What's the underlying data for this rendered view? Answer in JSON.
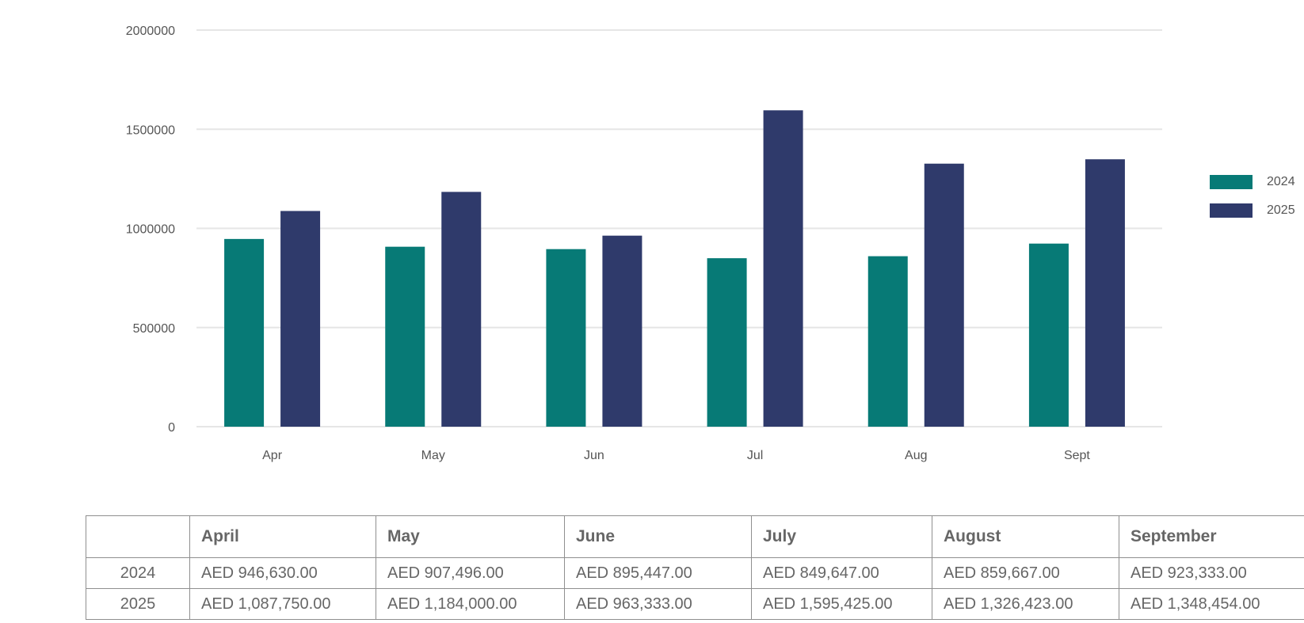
{
  "chart_data": {
    "type": "bar",
    "categories": [
      "Apr",
      "May",
      "Jun",
      "Jul",
      "Aug",
      "Sept"
    ],
    "series": [
      {
        "name": "2024",
        "color": "#077a76",
        "values": [
          946630,
          907496,
          895447,
          849647,
          859667,
          923333
        ]
      },
      {
        "name": "2025",
        "color": "#2f3a6b",
        "values": [
          1087750,
          1184000,
          963333,
          1595425,
          1326423,
          1348454
        ]
      }
    ],
    "yticks": [
      "0",
      "500000",
      "1000000",
      "1500000",
      "2000000"
    ],
    "ylim": [
      0,
      2000000
    ],
    "grid": true,
    "legend_position": "right"
  },
  "table": {
    "headers": [
      "",
      "April",
      "May",
      "June",
      "July",
      "August",
      "September"
    ],
    "rows": [
      {
        "label": "2024",
        "cells": [
          "AED 946,630.00",
          "AED 907,496.00",
          "AED 895,447.00",
          "AED 849,647.00",
          "AED 859,667.00",
          "AED 923,333.00"
        ]
      },
      {
        "label": "2025",
        "cells": [
          "AED 1,087,750.00",
          "AED 1,184,000.00",
          "AED 963,333.00",
          "AED 1,595,425.00",
          "AED 1,326,423.00",
          "AED 1,348,454.00"
        ]
      }
    ]
  }
}
